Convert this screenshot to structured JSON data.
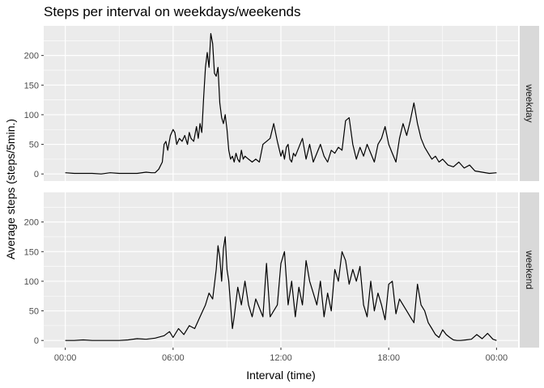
{
  "chart_data": {
    "type": "line",
    "title": "Steps per interval on weekdays/weekends",
    "xlabel": "Interval (time)",
    "ylabel": "Average steps (steps/5min.)",
    "x_tick_labels": [
      "00:00",
      "06:00",
      "12:00",
      "18:00",
      "00:00"
    ],
    "x_tick_hours": [
      0,
      6,
      12,
      18,
      24
    ],
    "xlim": [
      -1.2,
      25.2
    ],
    "y_ticks": [
      0,
      50,
      100,
      150,
      200
    ],
    "ylim": [
      -12,
      250
    ],
    "grid": true,
    "line_color": "#000000",
    "panel_color": "#ebebeb",
    "strip_color": "#d9d9d9",
    "facets": [
      {
        "label": "weekday",
        "x": [
          0.0,
          0.5,
          1.0,
          1.5,
          2.0,
          2.5,
          3.0,
          3.5,
          4.0,
          4.5,
          4.8,
          5.0,
          5.2,
          5.4,
          5.5,
          5.6,
          5.7,
          5.85,
          6.0,
          6.1,
          6.2,
          6.35,
          6.5,
          6.65,
          6.8,
          6.9,
          7.0,
          7.15,
          7.3,
          7.4,
          7.5,
          7.6,
          7.7,
          7.8,
          7.9,
          8.0,
          8.1,
          8.2,
          8.3,
          8.4,
          8.5,
          8.6,
          8.7,
          8.8,
          8.9,
          9.0,
          9.1,
          9.2,
          9.3,
          9.4,
          9.5,
          9.6,
          9.7,
          9.8,
          9.9,
          10.0,
          10.2,
          10.4,
          10.6,
          10.8,
          11.0,
          11.2,
          11.4,
          11.6,
          11.8,
          12.0,
          12.1,
          12.2,
          12.3,
          12.4,
          12.5,
          12.6,
          12.7,
          12.8,
          13.0,
          13.2,
          13.4,
          13.6,
          13.8,
          14.0,
          14.2,
          14.4,
          14.6,
          14.8,
          15.0,
          15.2,
          15.4,
          15.6,
          15.8,
          16.0,
          16.2,
          16.4,
          16.6,
          16.8,
          17.0,
          17.2,
          17.4,
          17.6,
          17.8,
          18.0,
          18.2,
          18.4,
          18.6,
          18.8,
          19.0,
          19.2,
          19.4,
          19.6,
          19.8,
          20.0,
          20.2,
          20.4,
          20.6,
          20.8,
          21.0,
          21.3,
          21.6,
          21.9,
          22.2,
          22.5,
          22.8,
          23.2,
          23.6,
          24.0
        ],
        "y": [
          2,
          1,
          1,
          1,
          0,
          2,
          1,
          1,
          1,
          3,
          2,
          2,
          8,
          20,
          50,
          55,
          40,
          65,
          75,
          70,
          50,
          60,
          55,
          65,
          50,
          70,
          60,
          55,
          80,
          60,
          85,
          70,
          130,
          180,
          205,
          180,
          237,
          220,
          170,
          165,
          180,
          120,
          95,
          85,
          100,
          75,
          40,
          25,
          30,
          20,
          35,
          25,
          20,
          40,
          25,
          30,
          25,
          20,
          25,
          20,
          50,
          55,
          60,
          85,
          55,
          30,
          40,
          25,
          45,
          50,
          25,
          20,
          35,
          30,
          45,
          60,
          25,
          50,
          20,
          35,
          50,
          30,
          20,
          40,
          35,
          45,
          40,
          90,
          95,
          50,
          25,
          45,
          30,
          50,
          35,
          20,
          50,
          60,
          80,
          50,
          35,
          20,
          60,
          85,
          65,
          90,
          120,
          85,
          60,
          45,
          35,
          25,
          30,
          20,
          25,
          15,
          12,
          20,
          10,
          15,
          5,
          3,
          1,
          2
        ],
        "min_y_floor": 0
      },
      {
        "label": "weekend",
        "x": [
          0.0,
          0.5,
          1.0,
          1.5,
          2.0,
          2.5,
          3.0,
          3.5,
          4.0,
          4.5,
          5.0,
          5.5,
          5.8,
          6.0,
          6.3,
          6.6,
          6.9,
          7.2,
          7.5,
          7.8,
          8.0,
          8.2,
          8.4,
          8.5,
          8.6,
          8.7,
          8.8,
          8.9,
          9.0,
          9.1,
          9.2,
          9.3,
          9.4,
          9.6,
          9.8,
          10.0,
          10.2,
          10.4,
          10.6,
          10.8,
          11.0,
          11.2,
          11.4,
          11.6,
          11.8,
          12.0,
          12.2,
          12.4,
          12.6,
          12.8,
          13.0,
          13.2,
          13.4,
          13.6,
          13.8,
          14.0,
          14.2,
          14.4,
          14.6,
          14.8,
          15.0,
          15.2,
          15.4,
          15.6,
          15.8,
          16.0,
          16.2,
          16.4,
          16.6,
          16.8,
          17.0,
          17.2,
          17.4,
          17.6,
          17.8,
          18.0,
          18.2,
          18.4,
          18.6,
          18.8,
          19.0,
          19.2,
          19.4,
          19.6,
          19.8,
          20.0,
          20.2,
          20.4,
          20.6,
          20.8,
          21.0,
          21.2,
          21.4,
          21.6,
          21.8,
          22.0,
          22.3,
          22.6,
          22.9,
          23.2,
          23.5,
          23.8,
          24.0
        ],
        "y": [
          0,
          0,
          1,
          0,
          0,
          0,
          0,
          1,
          3,
          2,
          4,
          8,
          15,
          5,
          20,
          10,
          25,
          20,
          40,
          60,
          80,
          70,
          120,
          160,
          140,
          100,
          155,
          175,
          120,
          100,
          60,
          20,
          40,
          90,
          60,
          100,
          60,
          40,
          70,
          55,
          40,
          130,
          40,
          50,
          60,
          130,
          150,
          60,
          100,
          40,
          90,
          60,
          135,
          100,
          80,
          60,
          100,
          40,
          80,
          50,
          120,
          100,
          150,
          135,
          95,
          120,
          100,
          125,
          60,
          40,
          100,
          50,
          80,
          60,
          35,
          95,
          100,
          45,
          70,
          60,
          50,
          40,
          30,
          95,
          60,
          50,
          30,
          20,
          10,
          5,
          18,
          10,
          5,
          1,
          0,
          0,
          1,
          2,
          10,
          3,
          12,
          2,
          0
        ],
        "min_y_floor": 0
      }
    ]
  }
}
